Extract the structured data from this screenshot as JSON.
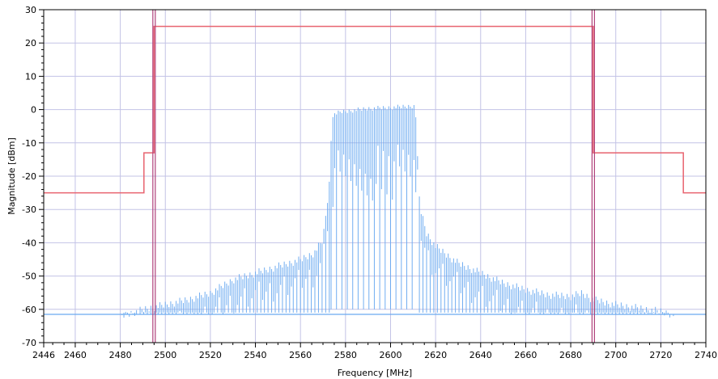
{
  "chart_data": {
    "type": "line",
    "xlabel": "Frequency [MHz]",
    "ylabel": "Magnitude [dBm]",
    "xlim": [
      2446,
      2740
    ],
    "ylim": [
      -70,
      30
    ],
    "x_ticks": [
      2446,
      2460,
      2480,
      2500,
      2520,
      2540,
      2560,
      2580,
      2600,
      2620,
      2640,
      2660,
      2680,
      2700,
      2720,
      2740
    ],
    "y_ticks": [
      30,
      20,
      10,
      0,
      -10,
      -20,
      -30,
      -40,
      -50,
      -60,
      -70
    ],
    "grid": true,
    "colors": {
      "spectrum": "#6aaaf0",
      "mask": "#e8636f",
      "marker": "#b0407a",
      "grid": "#c3c3e6"
    },
    "series": [
      {
        "role": "spectral-mask",
        "x": [
          2446,
          2490.5,
          2490.5,
          2495,
          2495,
          2690,
          2690,
          2730,
          2730,
          2740
        ],
        "values": [
          -25,
          -25,
          -13,
          -13,
          25,
          25,
          -13,
          -13,
          -25,
          -25
        ]
      },
      {
        "role": "measured-spectrum-envelope",
        "x": [
          2446,
          2470,
          2480,
          2490,
          2500,
          2510,
          2520,
          2530,
          2540,
          2550,
          2560,
          2566,
          2570,
          2573,
          2574,
          2578,
          2590,
          2600,
          2611,
          2612,
          2613,
          2616,
          2620,
          2630,
          2640,
          2650,
          2660,
          2670,
          2680,
          2685,
          2690,
          2700,
          2710,
          2720,
          2726,
          2730,
          2740
        ],
        "values": [
          -61.5,
          -61.5,
          -61,
          -59,
          -57.5,
          -56,
          -54,
          -50,
          -48,
          -46,
          -44,
          -42,
          -38,
          -20,
          -1,
          0,
          1,
          1.3,
          1.8,
          -14,
          -28,
          -36,
          -40,
          -45,
          -48,
          -51,
          -53,
          -54.5,
          -55,
          -54,
          -56,
          -57.5,
          -58.5,
          -59.5,
          -60.5,
          -61,
          -61
        ]
      },
      {
        "role": "noise-floor",
        "x": [
          2446,
          2740
        ],
        "values": [
          -61.5,
          -61.5
        ]
      }
    ],
    "markers_x": [
      2495,
      2690
    ]
  }
}
